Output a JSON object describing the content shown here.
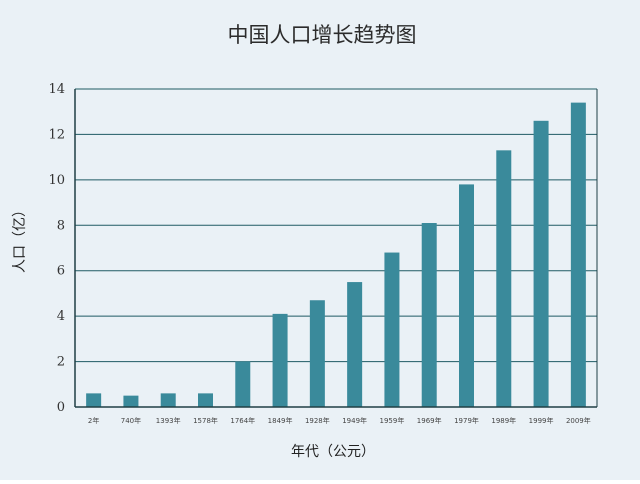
{
  "chart_data": {
    "type": "bar",
    "title": "中国人口增长趋势图",
    "xlabel": "年代（公元）",
    "ylabel": "人口（亿）",
    "categories": [
      "2年",
      "740年",
      "1393年",
      "1578年",
      "1764年",
      "1849年",
      "1928年",
      "1949年",
      "1959年",
      "1969年",
      "1979年",
      "1989年",
      "1999年",
      "2009年"
    ],
    "values": [
      0.6,
      0.5,
      0.6,
      0.6,
      2.0,
      4.1,
      4.7,
      5.5,
      6.8,
      8.1,
      9.8,
      11.3,
      12.6,
      13.4
    ],
    "ylim": [
      0,
      14
    ],
    "yticks": [
      0,
      2,
      4,
      6,
      8,
      10,
      12,
      14
    ],
    "grid": true,
    "bar_color": "#3a8a9b",
    "gridline_color": "#1f5a63"
  }
}
